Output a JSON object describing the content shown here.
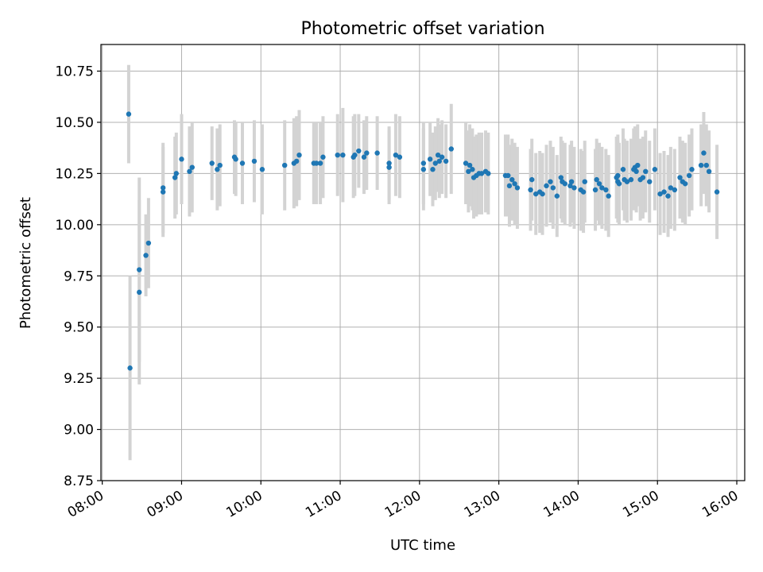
{
  "chart_data": {
    "type": "scatter",
    "title": "Photometric offset variation",
    "xlabel": "UTC time",
    "ylabel": "Photometric offset",
    "xlim": [
      "07:59",
      "16:06"
    ],
    "ylim": [
      8.75,
      10.88
    ],
    "x_ticks": [
      "08:00",
      "09:00",
      "10:00",
      "11:00",
      "12:00",
      "13:00",
      "14:00",
      "15:00",
      "16:00"
    ],
    "y_ticks": [
      "8.75",
      "9.00",
      "9.25",
      "9.50",
      "9.75",
      "10.00",
      "10.25",
      "10.50",
      "10.75"
    ],
    "grid": true,
    "colors": {
      "marker": "#1f77b4",
      "errorbar": "#d3d3d3"
    },
    "series": [
      {
        "x": [
          "08:20",
          "08:21",
          "08:28",
          "08:28",
          "08:33",
          "08:35",
          "08:46",
          "08:46",
          "08:55",
          "08:56",
          "09:00",
          "09:06",
          "09:08",
          "09:23",
          "09:27",
          "09:29",
          "09:40",
          "09:41",
          "09:46",
          "09:55",
          "10:01",
          "10:18",
          "10:25",
          "10:27",
          "10:29",
          "10:40",
          "10:42",
          "10:45",
          "10:47",
          "10:58",
          "11:02",
          "11:10",
          "11:11",
          "11:14",
          "11:18",
          "11:20",
          "11:28",
          "11:37",
          "11:37",
          "11:42",
          "11:45",
          "12:03",
          "12:03",
          "12:08",
          "12:10",
          "12:12",
          "12:14",
          "12:15",
          "12:17",
          "12:20",
          "12:24",
          "12:35",
          "12:37",
          "12:38",
          "12:40",
          "12:41",
          "12:43",
          "12:45",
          "12:47",
          "12:50",
          "12:52",
          "13:05",
          "13:07",
          "13:08",
          "13:10",
          "13:12",
          "13:14",
          "13:24",
          "13:25",
          "13:28",
          "13:31",
          "13:33",
          "13:36",
          "13:39",
          "13:41",
          "13:44",
          "13:47",
          "13:48",
          "13:50",
          "13:54",
          "13:55",
          "13:57",
          "14:02",
          "14:04",
          "14:05",
          "14:13",
          "14:14",
          "14:16",
          "14:18",
          "14:21",
          "14:23",
          "14:29",
          "14:30",
          "14:30",
          "14:31",
          "14:34",
          "14:35",
          "14:37",
          "14:40",
          "14:42",
          "14:43",
          "14:44",
          "14:45",
          "14:47",
          "14:49",
          "14:51",
          "14:54",
          "14:58",
          "15:02",
          "15:05",
          "15:08",
          "15:10",
          "15:13",
          "15:17",
          "15:19",
          "15:21",
          "15:24",
          "15:26",
          "15:33",
          "15:35",
          "15:37",
          "15:39",
          "15:45"
        ],
        "y": [
          10.54,
          9.3,
          9.78,
          9.67,
          9.85,
          9.91,
          10.18,
          10.16,
          10.23,
          10.25,
          10.32,
          10.26,
          10.28,
          10.3,
          10.27,
          10.29,
          10.33,
          10.32,
          10.3,
          10.31,
          10.27,
          10.29,
          10.3,
          10.31,
          10.34,
          10.3,
          10.3,
          10.3,
          10.33,
          10.34,
          10.34,
          10.33,
          10.34,
          10.36,
          10.33,
          10.35,
          10.35,
          10.3,
          10.28,
          10.34,
          10.33,
          10.27,
          10.3,
          10.32,
          10.27,
          10.3,
          10.34,
          10.31,
          10.33,
          10.31,
          10.37,
          10.3,
          10.26,
          10.29,
          10.27,
          10.23,
          10.24,
          10.25,
          10.25,
          10.26,
          10.25,
          10.24,
          10.24,
          10.19,
          10.22,
          10.2,
          10.18,
          10.17,
          10.22,
          10.15,
          10.16,
          10.15,
          10.19,
          10.21,
          10.18,
          10.14,
          10.23,
          10.21,
          10.2,
          10.19,
          10.21,
          10.18,
          10.17,
          10.16,
          10.21,
          10.17,
          10.22,
          10.2,
          10.18,
          10.17,
          10.14,
          10.23,
          10.21,
          10.24,
          10.2,
          10.27,
          10.22,
          10.21,
          10.22,
          10.27,
          10.28,
          10.26,
          10.29,
          10.22,
          10.23,
          10.26,
          10.21,
          10.27,
          10.15,
          10.16,
          10.14,
          10.18,
          10.17,
          10.23,
          10.21,
          10.2,
          10.24,
          10.27,
          10.29,
          10.35,
          10.29,
          10.26,
          10.16
        ],
        "err": [
          0.24,
          0.45,
          0.45,
          0.45,
          0.2,
          0.22,
          0.22,
          0.22,
          0.2,
          0.2,
          0.22,
          0.22,
          0.22,
          0.18,
          0.2,
          0.2,
          0.18,
          0.18,
          0.2,
          0.2,
          0.22,
          0.22,
          0.22,
          0.22,
          0.22,
          0.2,
          0.2,
          0.2,
          0.2,
          0.2,
          0.23,
          0.2,
          0.2,
          0.18,
          0.18,
          0.18,
          0.18,
          0.18,
          0.18,
          0.2,
          0.2,
          0.2,
          0.2,
          0.18,
          0.18,
          0.18,
          0.18,
          0.18,
          0.18,
          0.18,
          0.22,
          0.2,
          0.2,
          0.2,
          0.2,
          0.2,
          0.2,
          0.2,
          0.2,
          0.2,
          0.2,
          0.2,
          0.2,
          0.2,
          0.2,
          0.2,
          0.2,
          0.2,
          0.2,
          0.2,
          0.2,
          0.2,
          0.2,
          0.2,
          0.2,
          0.2,
          0.2,
          0.2,
          0.2,
          0.2,
          0.2,
          0.2,
          0.2,
          0.2,
          0.2,
          0.2,
          0.2,
          0.2,
          0.2,
          0.2,
          0.2,
          0.2,
          0.2,
          0.2,
          0.2,
          0.2,
          0.2,
          0.2,
          0.2,
          0.2,
          0.2,
          0.2,
          0.2,
          0.2,
          0.2,
          0.2,
          0.2,
          0.2,
          0.2,
          0.2,
          0.2,
          0.2,
          0.2,
          0.2,
          0.2,
          0.2,
          0.2,
          0.2,
          0.2,
          0.2,
          0.2,
          0.2,
          0.23
        ]
      }
    ]
  }
}
